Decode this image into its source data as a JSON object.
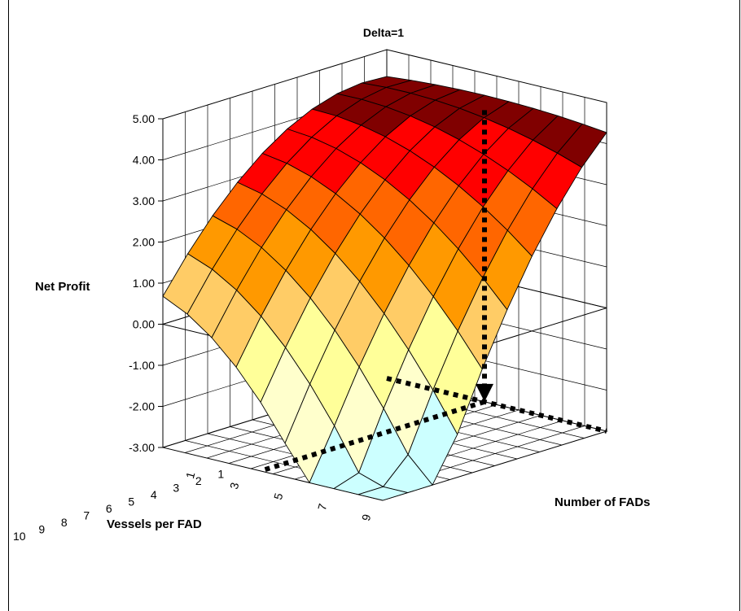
{
  "chart_data": {
    "type": "surface",
    "title": "Delta=1",
    "zlabel": "Net Profit",
    "xlabel": "Vessels per FAD",
    "ylabel": "Number of FADs",
    "zlim": [
      -3,
      5
    ],
    "z_ticks": [
      "5.00",
      "4.00",
      "3.00",
      "2.00",
      "1.00",
      "0.00",
      "-1.00",
      "-2.00",
      "-3.00"
    ],
    "x_categories": [
      "1",
      "2",
      "3",
      "4",
      "5",
      "6",
      "7",
      "8",
      "9",
      "10"
    ],
    "y_tick_labels": [
      "1",
      "3",
      "5",
      "7",
      "9"
    ],
    "y_count": 10,
    "grid": true,
    "band_colors": [
      {
        "range": [
          -3,
          -2
        ],
        "color": "#ccffff"
      },
      {
        "range": [
          -2,
          -1
        ],
        "color": "#ffffcc"
      },
      {
        "range": [
          -1,
          0
        ],
        "color": "#ffff99"
      },
      {
        "range": [
          0,
          1
        ],
        "color": "#ffcc66"
      },
      {
        "range": [
          1,
          2
        ],
        "color": "#ff9900"
      },
      {
        "range": [
          2,
          3
        ],
        "color": "#ff6600"
      },
      {
        "range": [
          3,
          4
        ],
        "color": "#ff0000"
      },
      {
        "range": [
          4,
          5
        ],
        "color": "#800000"
      }
    ],
    "arrow_annotation": {
      "from": {
        "vessels": 1,
        "fads": 5,
        "z": 4.1
      },
      "to": {
        "vessels": 1,
        "fads": 5,
        "z": -3
      }
    }
  }
}
